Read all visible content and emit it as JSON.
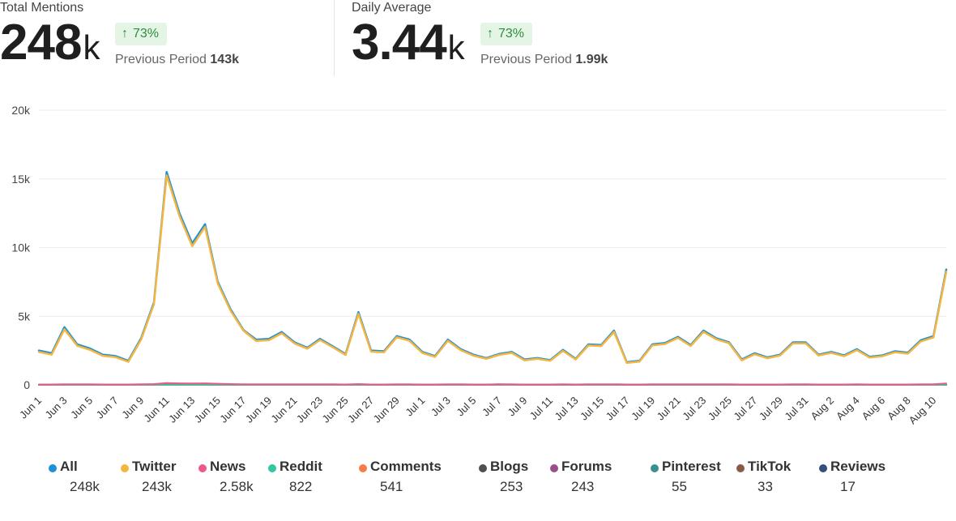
{
  "kpis": [
    {
      "title": "Total Mentions",
      "value": "248",
      "unit": "k",
      "change": "73%",
      "prev_label": "Previous Period",
      "prev_value": "143k"
    },
    {
      "title": "Daily Average",
      "value": "3.44",
      "unit": "k",
      "change": "73%",
      "prev_label": "Previous Period",
      "prev_value": "1.99k"
    }
  ],
  "colors": {
    "badge_bg": "#e4f5e6",
    "badge_text": "#2e8b3d"
  },
  "legend": [
    {
      "name": "All",
      "value": "248k",
      "color": "#1e90d8"
    },
    {
      "name": "Twitter",
      "value": "243k",
      "color": "#f5b63f"
    },
    {
      "name": "News",
      "value": "2.58k",
      "color": "#ec5a8c"
    },
    {
      "name": "Reddit",
      "value": "822",
      "color": "#2ec99e"
    },
    {
      "name": "Comments",
      "value": "541",
      "color": "#fb7a4a"
    },
    {
      "name": "Blogs",
      "value": "253",
      "color": "#4f4f4f"
    },
    {
      "name": "Forums",
      "value": "243",
      "color": "#9a4f8c"
    },
    {
      "name": "Pinterest",
      "value": "55",
      "color": "#3a8f8f"
    },
    {
      "name": "TikTok",
      "value": "33",
      "color": "#8a5a44"
    },
    {
      "name": "Reviews",
      "value": "17",
      "color": "#34507a"
    }
  ],
  "chart_data": {
    "type": "line",
    "ylim": [
      0,
      20000
    ],
    "y_ticks": [
      0,
      5000,
      10000,
      15000,
      20000
    ],
    "y_tick_labels": [
      "0",
      "5k",
      "10k",
      "15k",
      "20k"
    ],
    "grid": true,
    "legend_placement": "bottom",
    "x": [
      "Jun 1",
      "Jun 2",
      "Jun 3",
      "Jun 4",
      "Jun 5",
      "Jun 6",
      "Jun 7",
      "Jun 8",
      "Jun 9",
      "Jun 10",
      "Jun 11",
      "Jun 12",
      "Jun 13",
      "Jun 14",
      "Jun 15",
      "Jun 16",
      "Jun 17",
      "Jun 18",
      "Jun 19",
      "Jun 20",
      "Jun 21",
      "Jun 22",
      "Jun 23",
      "Jun 24",
      "Jun 25",
      "Jun 26",
      "Jun 27",
      "Jun 28",
      "Jun 29",
      "Jun 30",
      "Jul 1",
      "Jul 2",
      "Jul 3",
      "Jul 4",
      "Jul 5",
      "Jul 6",
      "Jul 7",
      "Jul 8",
      "Jul 9",
      "Jul 10",
      "Jul 11",
      "Jul 12",
      "Jul 13",
      "Jul 14",
      "Jul 15",
      "Jul 16",
      "Jul 17",
      "Jul 18",
      "Jul 19",
      "Jul 20",
      "Jul 21",
      "Jul 22",
      "Jul 23",
      "Jul 24",
      "Jul 25",
      "Jul 26",
      "Jul 27",
      "Jul 28",
      "Jul 29",
      "Jul 30",
      "Jul 31",
      "Aug 1",
      "Aug 2",
      "Aug 3",
      "Aug 4",
      "Aug 5",
      "Aug 6",
      "Aug 7",
      "Aug 8",
      "Aug 9",
      "Aug 10",
      "Aug 11"
    ],
    "x_tick_labels": [
      "Jun 1",
      "Jun 3",
      "Jun 5",
      "Jun 7",
      "Jun 9",
      "Jun 11",
      "Jun 13",
      "Jun 15",
      "Jun 17",
      "Jun 19",
      "Jun 21",
      "Jun 23",
      "Jun 25",
      "Jun 27",
      "Jun 29",
      "Jul 1",
      "Jul 3",
      "Jul 5",
      "Jul 7",
      "Jul 9",
      "Jul 11",
      "Jul 13",
      "Jul 15",
      "Jul 17",
      "Jul 19",
      "Jul 21",
      "Jul 23",
      "Jul 25",
      "Jul 27",
      "Jul 29",
      "Jul 31",
      "Aug 2",
      "Aug 4",
      "Aug 6",
      "Aug 8",
      "Aug 10"
    ],
    "series": [
      {
        "name": "All",
        "color": "#1e90d8",
        "values": [
          2500,
          2300,
          4200,
          2950,
          2650,
          2200,
          2100,
          1750,
          3400,
          6000,
          15500,
          12500,
          10300,
          11700,
          7500,
          5500,
          4000,
          3300,
          3350,
          3850,
          3100,
          2700,
          3350,
          2800,
          2250,
          5300,
          2500,
          2450,
          3550,
          3300,
          2400,
          2100,
          3300,
          2600,
          2200,
          1950,
          2250,
          2400,
          1850,
          1950,
          1800,
          2550,
          1900,
          2950,
          2900,
          3950,
          1650,
          1750,
          2950,
          3050,
          3500,
          2900,
          3950,
          3400,
          3100,
          1850,
          2300,
          2000,
          2200,
          3100,
          3100,
          2200,
          2400,
          2150,
          2600,
          2050,
          2150,
          2450,
          2350,
          3250,
          3550,
          8400
        ]
      },
      {
        "name": "Twitter",
        "color": "#f5b63f",
        "values": [
          2400,
          2200,
          4050,
          2850,
          2550,
          2120,
          2020,
          1680,
          3300,
          5880,
          15250,
          12300,
          10100,
          11500,
          7380,
          5400,
          3950,
          3200,
          3250,
          3760,
          3020,
          2640,
          3270,
          2740,
          2180,
          5170,
          2420,
          2380,
          3470,
          3210,
          2330,
          2040,
          3210,
          2530,
          2130,
          1900,
          2180,
          2330,
          1790,
          1900,
          1750,
          2480,
          1850,
          2870,
          2830,
          3860,
          1600,
          1700,
          2880,
          2980,
          3420,
          2830,
          3860,
          3320,
          3030,
          1790,
          2230,
          1940,
          2140,
          3020,
          3020,
          2140,
          2330,
          2090,
          2530,
          1990,
          2090,
          2380,
          2280,
          3160,
          3460,
          8250
        ]
      },
      {
        "name": "News",
        "color": "#ec5a8c",
        "values": [
          30,
          30,
          50,
          40,
          40,
          30,
          30,
          30,
          40,
          60,
          130,
          110,
          100,
          110,
          80,
          60,
          50,
          40,
          40,
          50,
          40,
          40,
          40,
          40,
          30,
          60,
          30,
          30,
          40,
          40,
          30,
          30,
          40,
          40,
          30,
          30,
          40,
          40,
          30,
          30,
          30,
          40,
          30,
          40,
          40,
          50,
          30,
          30,
          40,
          40,
          40,
          40,
          50,
          40,
          40,
          30,
          30,
          30,
          30,
          40,
          40,
          30,
          30,
          30,
          40,
          30,
          30,
          30,
          30,
          40,
          40,
          100
        ]
      },
      {
        "name": "Reddit",
        "color": "#2ec99e",
        "values": [
          12,
          12,
          12,
          12,
          12,
          12,
          12,
          12,
          12,
          12,
          12,
          12,
          12,
          12,
          12,
          12,
          12,
          12,
          12,
          12,
          12,
          12,
          12,
          12,
          12,
          12,
          12,
          12,
          12,
          12,
          12,
          12,
          12,
          12,
          12,
          12,
          12,
          12,
          12,
          12,
          12,
          12,
          12,
          12,
          12,
          12,
          12,
          12,
          12,
          12,
          12,
          12,
          12,
          12,
          12,
          12,
          12,
          12,
          12,
          12,
          12,
          12,
          12,
          12,
          12,
          12,
          12,
          12,
          12,
          12,
          12,
          12
        ]
      },
      {
        "name": "Comments",
        "color": "#fb7a4a",
        "values": [
          8,
          8,
          8,
          8,
          8,
          8,
          8,
          8,
          8,
          8,
          8,
          8,
          8,
          8,
          8,
          8,
          8,
          8,
          8,
          8,
          8,
          8,
          8,
          8,
          8,
          8,
          8,
          8,
          8,
          8,
          8,
          8,
          8,
          8,
          8,
          8,
          8,
          8,
          8,
          8,
          8,
          8,
          8,
          8,
          8,
          8,
          8,
          8,
          8,
          8,
          8,
          8,
          8,
          8,
          8,
          8,
          8,
          8,
          8,
          8,
          8,
          8,
          8,
          8,
          8,
          8,
          8,
          8,
          8,
          8,
          8,
          8
        ]
      },
      {
        "name": "Blogs",
        "color": "#4f4f4f",
        "values": [
          4,
          4,
          4,
          4,
          4,
          4,
          4,
          4,
          4,
          4,
          4,
          4,
          4,
          4,
          4,
          4,
          4,
          4,
          4,
          4,
          4,
          4,
          4,
          4,
          4,
          4,
          4,
          4,
          4,
          4,
          4,
          4,
          4,
          4,
          4,
          4,
          4,
          4,
          4,
          4,
          4,
          4,
          4,
          4,
          4,
          4,
          4,
          4,
          4,
          4,
          4,
          4,
          4,
          4,
          4,
          4,
          4,
          4,
          4,
          4,
          4,
          4,
          4,
          4,
          4,
          4,
          4,
          4,
          4,
          4,
          4,
          4
        ]
      },
      {
        "name": "Forums",
        "color": "#9a4f8c",
        "values": [
          3,
          3,
          3,
          3,
          3,
          3,
          3,
          3,
          3,
          3,
          60,
          40,
          30,
          40,
          20,
          10,
          3,
          3,
          3,
          3,
          3,
          3,
          3,
          3,
          3,
          3,
          3,
          3,
          3,
          3,
          3,
          3,
          3,
          3,
          30,
          3,
          40,
          20,
          3,
          3,
          3,
          3,
          3,
          3,
          3,
          3,
          3,
          3,
          3,
          3,
          3,
          3,
          3,
          3,
          30,
          30,
          3,
          3,
          3,
          3,
          3,
          3,
          3,
          3,
          30,
          3,
          3,
          3,
          3,
          3,
          3,
          3
        ]
      },
      {
        "name": "Pinterest",
        "color": "#3a8f8f",
        "values": [
          1,
          1,
          1,
          1,
          1,
          1,
          1,
          1,
          1,
          1,
          1,
          1,
          1,
          1,
          1,
          1,
          1,
          1,
          1,
          1,
          1,
          1,
          1,
          1,
          1,
          1,
          1,
          1,
          1,
          1,
          1,
          1,
          1,
          1,
          1,
          1,
          1,
          1,
          1,
          1,
          1,
          1,
          1,
          1,
          1,
          1,
          1,
          1,
          1,
          1,
          1,
          1,
          1,
          1,
          1,
          1,
          1,
          1,
          1,
          1,
          1,
          1,
          1,
          1,
          1,
          1,
          1,
          1,
          1,
          1,
          1,
          1
        ]
      },
      {
        "name": "TikTok",
        "color": "#8a5a44",
        "values": [
          0,
          0,
          0,
          0,
          0,
          0,
          0,
          0,
          0,
          0,
          0,
          0,
          0,
          0,
          0,
          0,
          0,
          0,
          0,
          0,
          0,
          0,
          0,
          0,
          0,
          0,
          0,
          0,
          0,
          0,
          0,
          0,
          0,
          0,
          0,
          0,
          0,
          0,
          0,
          0,
          0,
          0,
          0,
          0,
          0,
          0,
          0,
          0,
          0,
          0,
          0,
          0,
          0,
          0,
          0,
          0,
          0,
          0,
          0,
          0,
          0,
          0,
          0,
          0,
          0,
          0,
          0,
          0,
          0,
          0,
          0,
          0
        ]
      },
      {
        "name": "Reviews",
        "color": "#34507a",
        "values": [
          0,
          0,
          0,
          0,
          0,
          0,
          0,
          0,
          0,
          0,
          0,
          0,
          0,
          0,
          0,
          0,
          0,
          0,
          0,
          0,
          0,
          0,
          0,
          0,
          0,
          0,
          0,
          0,
          0,
          0,
          0,
          0,
          0,
          0,
          0,
          0,
          0,
          0,
          0,
          0,
          0,
          0,
          0,
          0,
          0,
          0,
          0,
          0,
          0,
          0,
          0,
          0,
          0,
          0,
          0,
          0,
          0,
          0,
          0,
          0,
          0,
          0,
          0,
          0,
          0,
          0,
          0,
          0,
          0,
          0,
          0,
          0
        ]
      }
    ]
  }
}
